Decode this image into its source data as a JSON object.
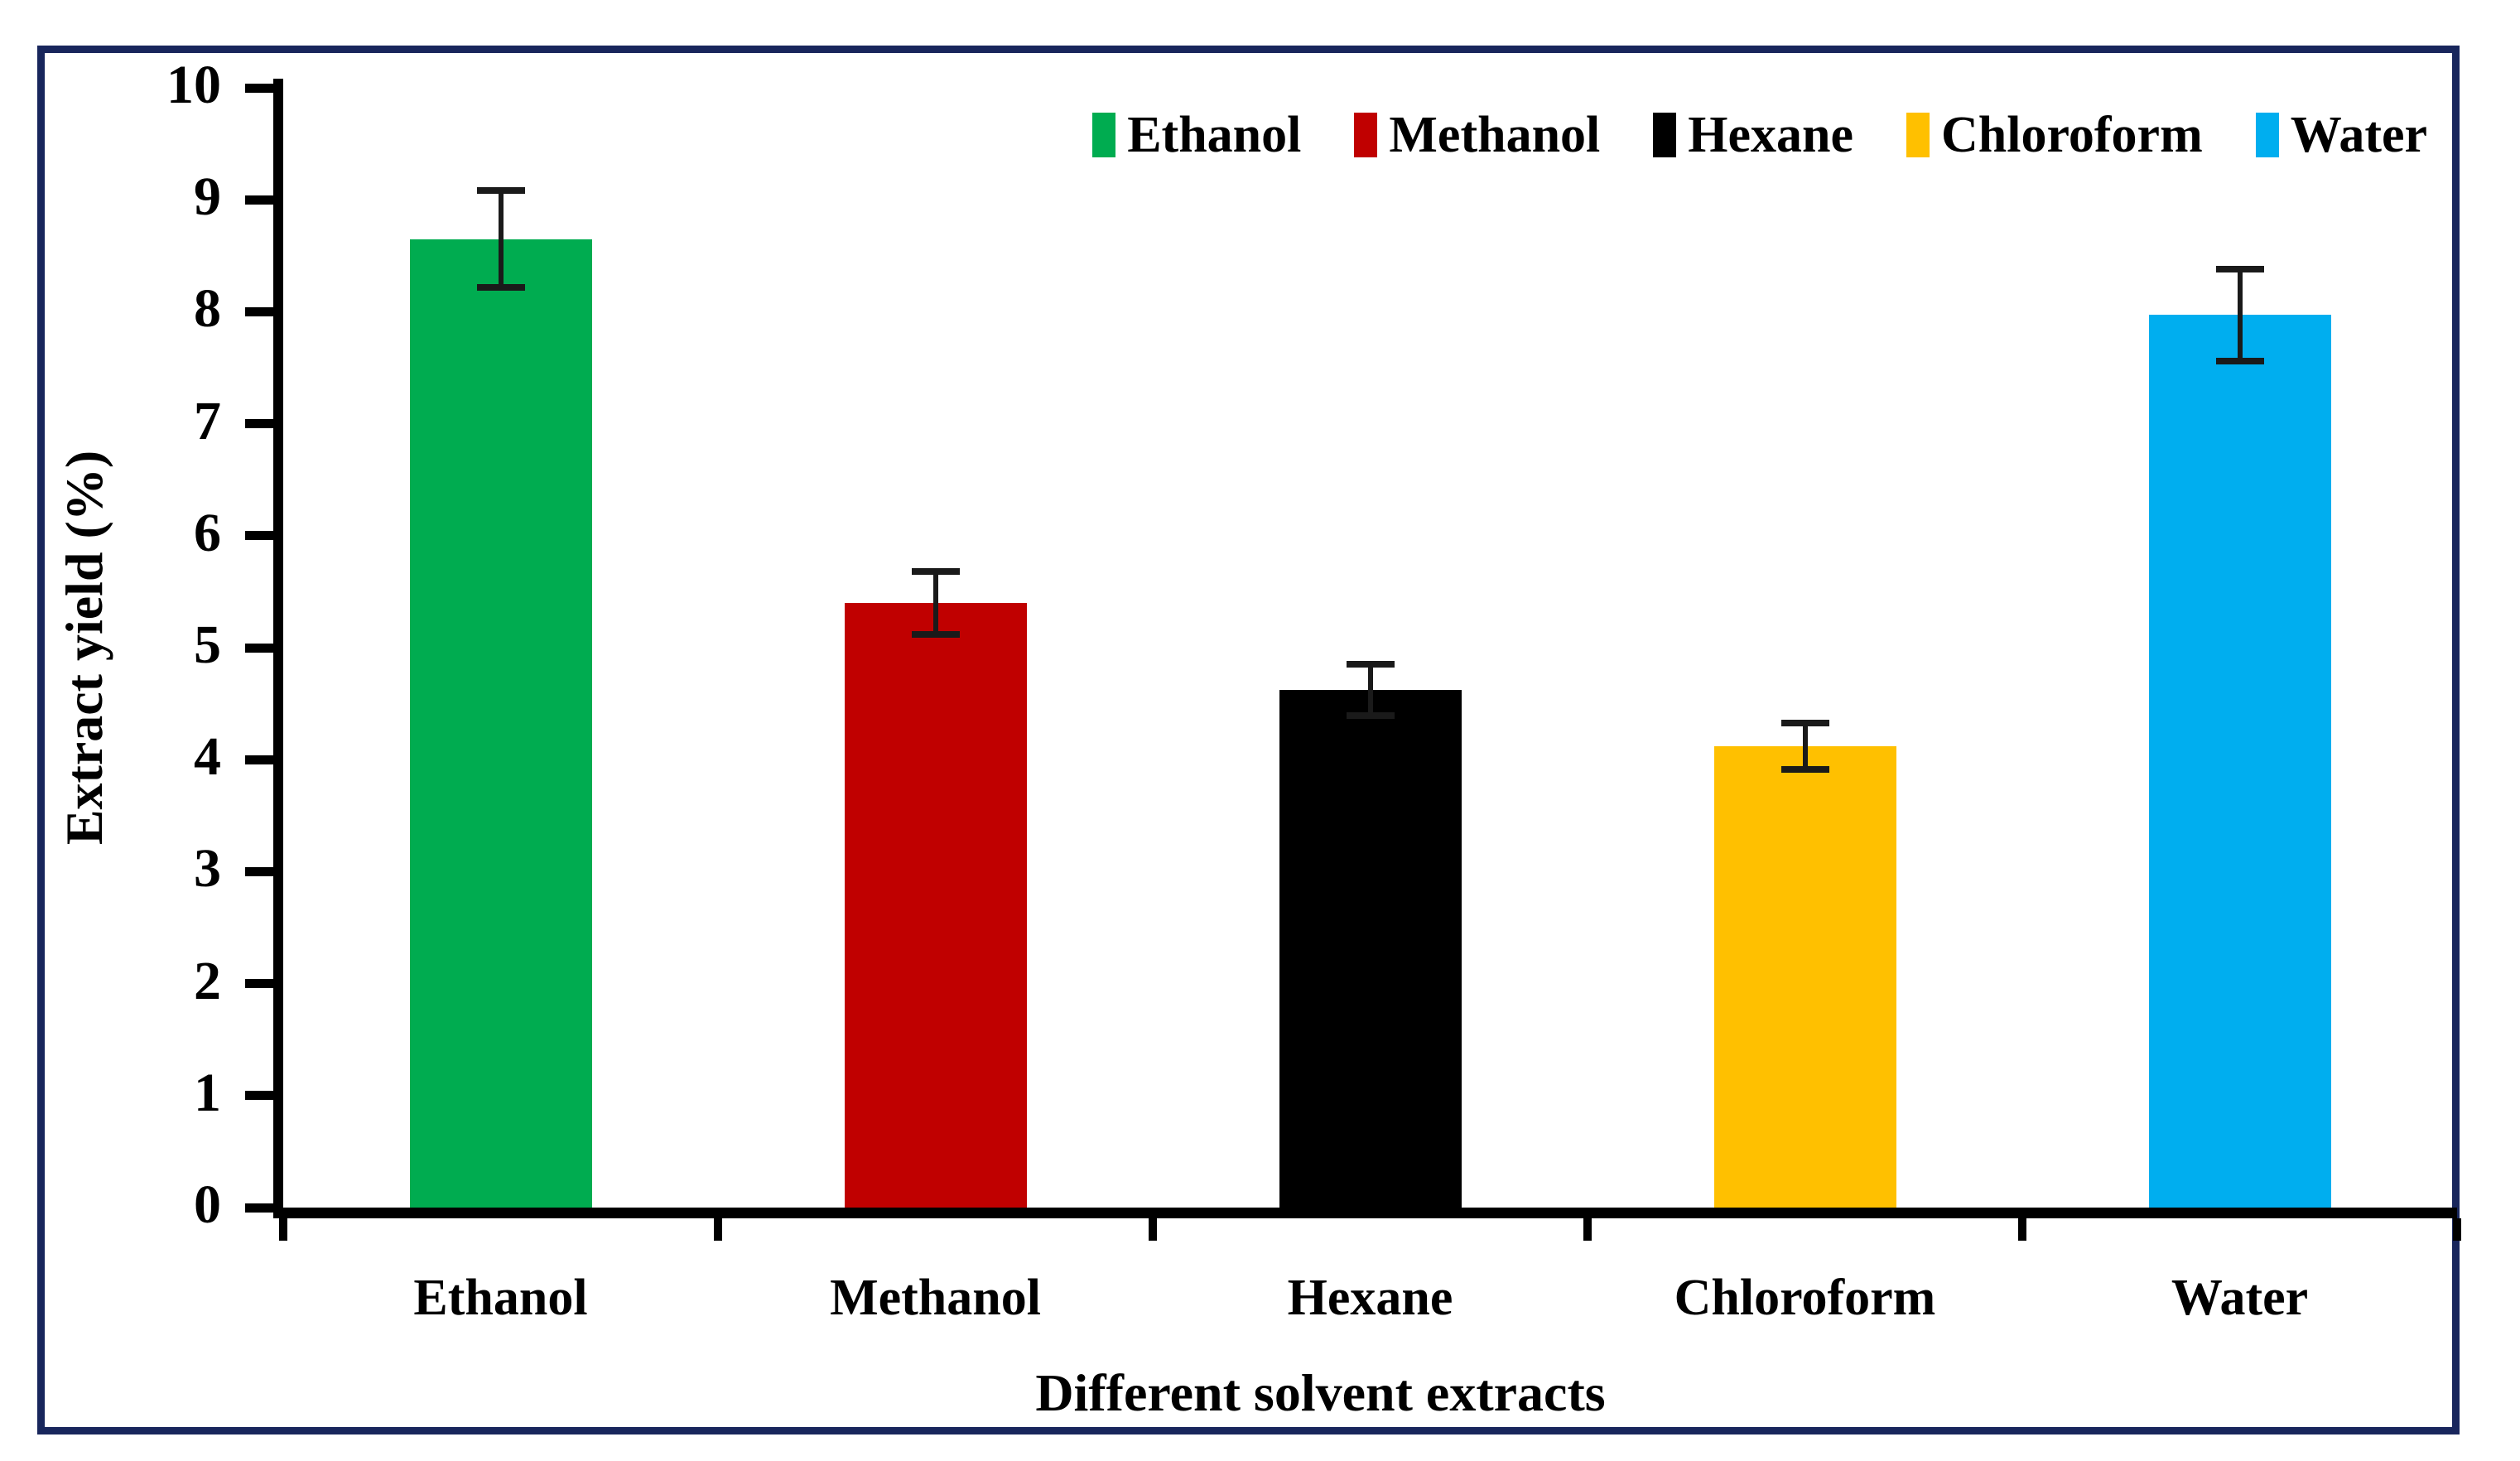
{
  "figure": {
    "frame_border_color": "#18265C",
    "background_color": "#FFFFFF",
    "axis_color": "#000000",
    "error_bar_color": "#1A1A1A"
  },
  "chart_data": {
    "type": "bar",
    "title": "",
    "xlabel": "Different solvent extracts",
    "ylabel": "Extract yield (%)",
    "categories": [
      "Ethanol",
      "Methanol",
      "Hexane",
      "Chloroform",
      "Water"
    ],
    "values": [
      8.65,
      5.4,
      4.62,
      4.12,
      7.97
    ],
    "errors": [
      0.43,
      0.28,
      0.23,
      0.21,
      0.41
    ],
    "bar_colors": [
      "#00AC50",
      "#C00000",
      "#000000",
      "#FFC000",
      "#00AEEF"
    ],
    "ylim": [
      0,
      10
    ],
    "ytick_labels": [
      "0",
      "1",
      "2",
      "3",
      "4",
      "5",
      "6",
      "7",
      "8",
      "9",
      "10"
    ],
    "grid": false,
    "legend": {
      "position": "top",
      "entries": [
        {
          "label": "Ethanol",
          "color": "#00AC50"
        },
        {
          "label": "Methanol",
          "color": "#C00000"
        },
        {
          "label": "Hexane",
          "color": "#000000"
        },
        {
          "label": "Chloroform",
          "color": "#FFC000"
        },
        {
          "label": "Water",
          "color": "#00AEEF"
        }
      ]
    }
  }
}
